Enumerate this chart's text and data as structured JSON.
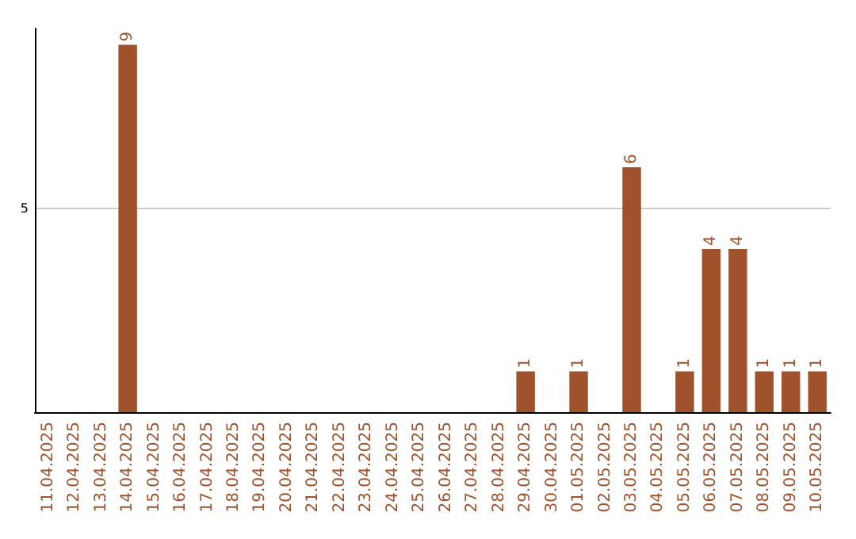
{
  "chart_data": {
    "type": "bar",
    "categories": [
      "11.04.2025",
      "12.04.2025",
      "13.04.2025",
      "14.04.2025",
      "15.04.2025",
      "16.04.2025",
      "17.04.2025",
      "18.04.2025",
      "19.04.2025",
      "20.04.2025",
      "21.04.2025",
      "22.04.2025",
      "23.04.2025",
      "24.04.2025",
      "25.04.2025",
      "26.04.2025",
      "27.04.2025",
      "28.04.2025",
      "29.04.2025",
      "30.04.2025",
      "01.05.2025",
      "02.05.2025",
      "03.05.2025",
      "04.05.2025",
      "05.05.2025",
      "06.05.2025",
      "07.05.2025",
      "08.05.2025",
      "09.05.2025",
      "10.05.2025"
    ],
    "values": [
      null,
      null,
      null,
      9,
      null,
      null,
      null,
      null,
      null,
      null,
      null,
      null,
      null,
      null,
      null,
      null,
      null,
      null,
      1,
      null,
      1,
      null,
      6,
      null,
      1,
      4,
      4,
      1,
      1,
      1
    ],
    "color": "#a0522d",
    "ylim": [
      0,
      9.4
    ],
    "yticks": [
      {
        "value": 0,
        "label": null
      },
      5
    ],
    "grid": "y",
    "data_labels": true
  }
}
